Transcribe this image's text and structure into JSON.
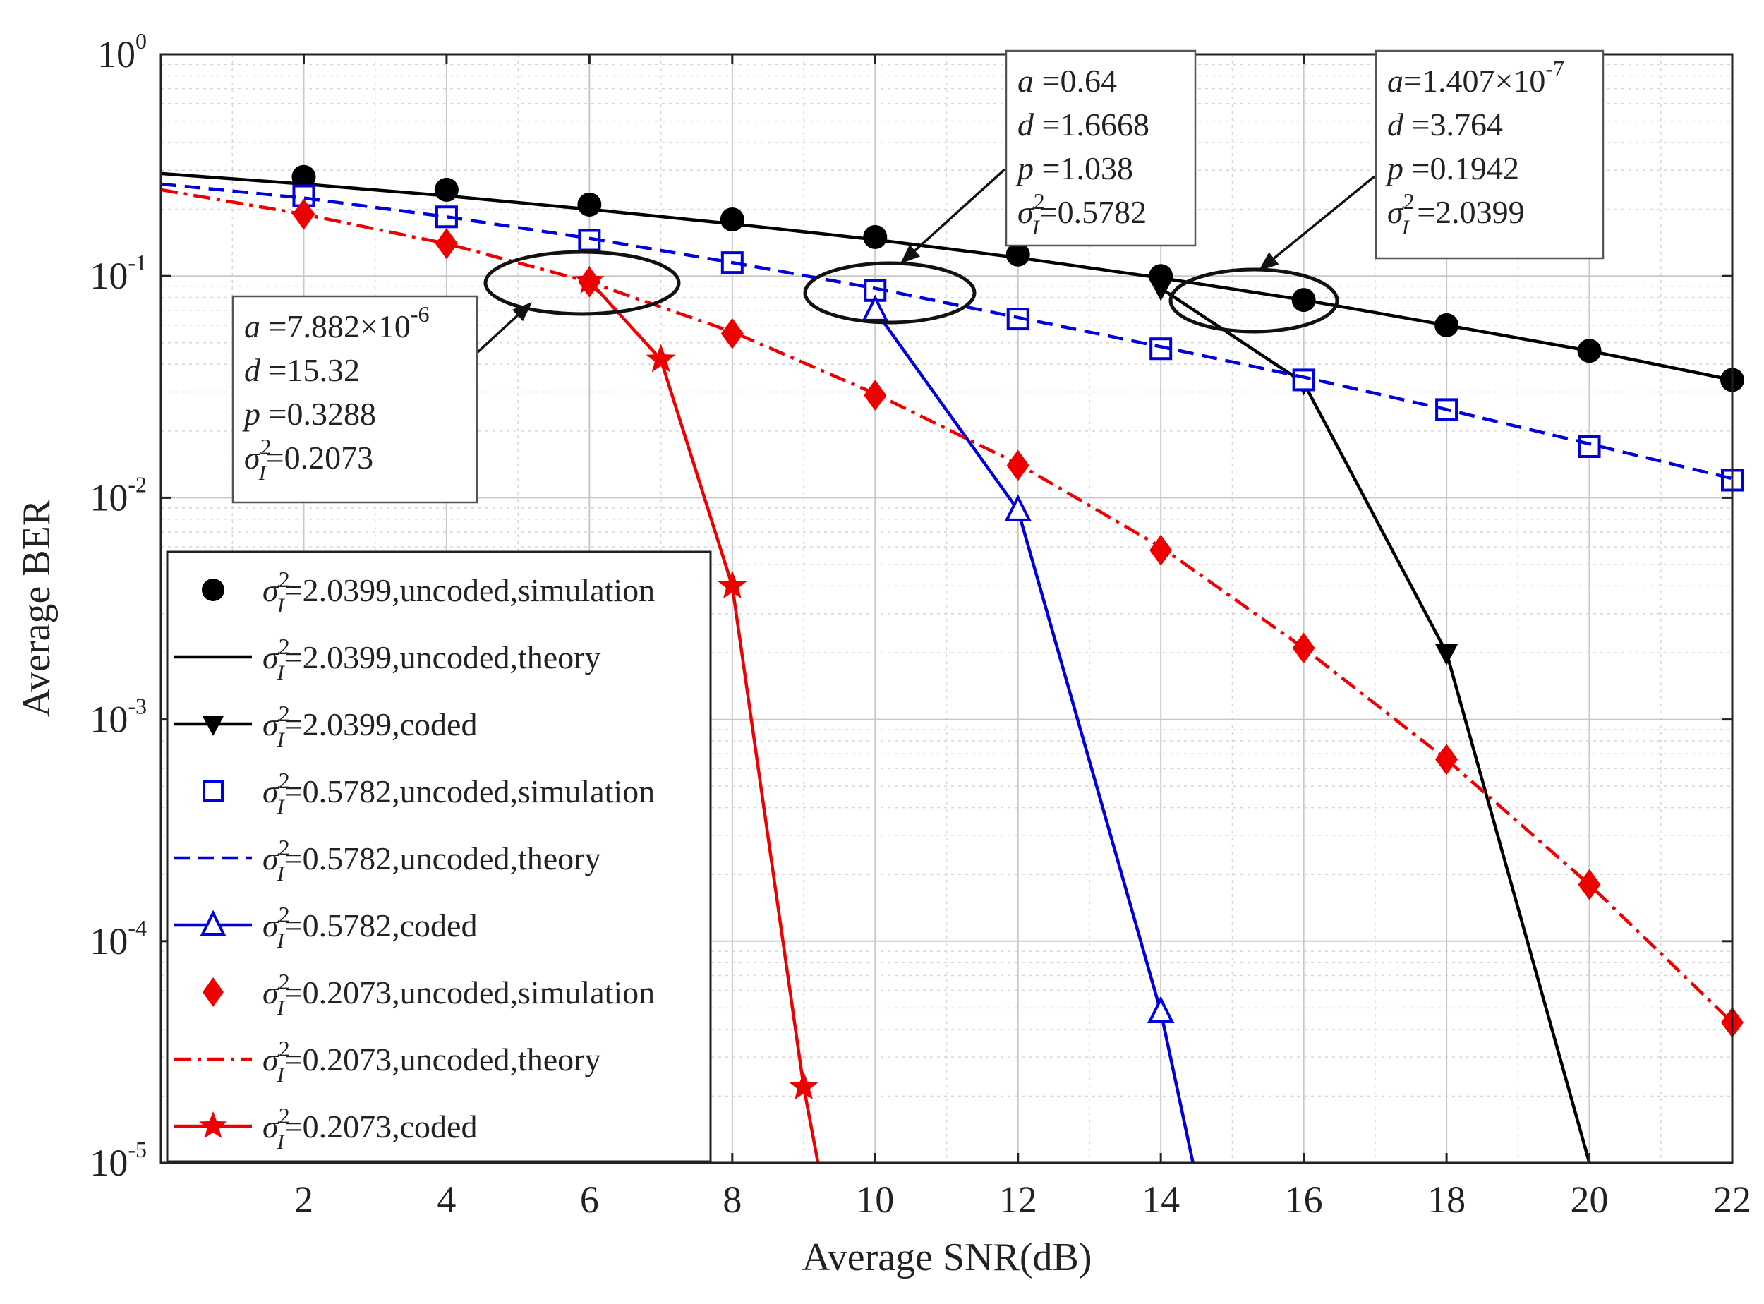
{
  "chart_data": {
    "type": "line",
    "x_scale": "linear",
    "y_scale": "log",
    "xlabel": "Average SNR(dB)",
    "ylabel": "Average BER",
    "xlim": [
      0,
      22
    ],
    "ylim": [
      1e-05,
      1
    ],
    "xticks": [
      2,
      4,
      6,
      8,
      10,
      12,
      14,
      16,
      18,
      20,
      22
    ],
    "yticks": [
      {
        "value": 1,
        "base": "10",
        "exp": "0"
      },
      {
        "value": 0.1,
        "base": "10",
        "exp": "-1"
      },
      {
        "value": 0.01,
        "base": "10",
        "exp": "-2"
      },
      {
        "value": 0.001,
        "base": "10",
        "exp": "-3"
      },
      {
        "value": 0.0001,
        "base": "10",
        "exp": "-4"
      },
      {
        "value": 1e-05,
        "base": "10",
        "exp": "-5"
      }
    ],
    "grid": true,
    "legend_position": "bottom-left",
    "series": [
      {
        "name": "σI2=2.0399,uncoded,simulation",
        "legend_value": "=2.0399,uncoded,simulation",
        "color": "#000000",
        "line": "none",
        "marker": "circle",
        "x": [
          2,
          4,
          6,
          8,
          10,
          12,
          14,
          16,
          18,
          20,
          22
        ],
        "y": [
          0.28,
          0.245,
          0.21,
          0.18,
          0.15,
          0.125,
          0.1,
          0.078,
          0.06,
          0.046,
          0.034
        ]
      },
      {
        "name": "σI2=2.0399,uncoded,theory",
        "legend_value": "=2.0399,uncoded,theory",
        "color": "#000000",
        "line": "solid",
        "marker": "none",
        "x": [
          0,
          2,
          4,
          6,
          8,
          10,
          12,
          14,
          16,
          18,
          20,
          22
        ],
        "y": [
          0.29,
          0.26,
          0.23,
          0.2,
          0.172,
          0.146,
          0.121,
          0.098,
          0.078,
          0.06,
          0.046,
          0.034
        ]
      },
      {
        "name": "σI2=2.0399,coded",
        "legend_value": "=2.0399,coded",
        "color": "#000000",
        "line": "solid",
        "marker": "triangle-down",
        "x": [
          14,
          16,
          18,
          20
        ],
        "y": [
          0.088,
          0.033,
          0.002,
          1e-05
        ]
      },
      {
        "name": "σI2=0.5782,uncoded,simulation",
        "legend_value": "=0.5782,uncoded,simulation",
        "color": "#0000dd",
        "line": "none",
        "marker": "square",
        "x": [
          2,
          4,
          6,
          8,
          10,
          12,
          14,
          16,
          18,
          20,
          22
        ],
        "y": [
          0.23,
          0.185,
          0.145,
          0.115,
          0.086,
          0.064,
          0.047,
          0.034,
          0.025,
          0.017,
          0.012
        ]
      },
      {
        "name": "σI2=0.5782,uncoded,theory",
        "legend_value": "=0.5782,uncoded,theory",
        "color": "#0000dd",
        "line": "dashed",
        "marker": "none",
        "x": [
          0,
          2,
          4,
          6,
          8,
          10,
          12,
          14,
          16,
          18,
          20,
          22
        ],
        "y": [
          0.26,
          0.225,
          0.185,
          0.148,
          0.115,
          0.088,
          0.065,
          0.048,
          0.035,
          0.025,
          0.0175,
          0.0122
        ]
      },
      {
        "name": "σI2=0.5782,coded",
        "legend_value": "=0.5782,coded",
        "color": "#0000dd",
        "line": "solid",
        "marker": "triangle-up",
        "x": [
          10,
          12,
          14,
          14.45
        ],
        "y": [
          0.07,
          0.0088,
          4.8e-05,
          1e-05
        ]
      },
      {
        "name": "σI2=0.2073,uncoded,simulation",
        "legend_value": "=0.2073,uncoded,simulation",
        "color": "#ee0000",
        "line": "none",
        "marker": "diamond",
        "x": [
          2,
          4,
          6,
          8,
          10,
          12,
          14,
          16,
          18,
          20,
          22
        ],
        "y": [
          0.19,
          0.14,
          0.094,
          0.055,
          0.029,
          0.014,
          0.0058,
          0.0021,
          0.00066,
          0.00018,
          4.3e-05
        ]
      },
      {
        "name": "σI2=0.2073,uncoded,theory",
        "legend_value": "=0.2073,uncoded,theory",
        "color": "#ee0000",
        "line": "dashdot",
        "marker": "none",
        "x": [
          0,
          2,
          4,
          6,
          8,
          10,
          12,
          14,
          16,
          18,
          20,
          22
        ],
        "y": [
          0.245,
          0.19,
          0.14,
          0.094,
          0.056,
          0.0295,
          0.0142,
          0.006,
          0.0021,
          0.00066,
          0.00018,
          4.3e-05
        ]
      },
      {
        "name": "σI2=0.2073,coded",
        "legend_value": "=0.2073,coded",
        "color": "#ee0000",
        "line": "solid",
        "marker": "star",
        "x": [
          6,
          7,
          8,
          9,
          9.2
        ],
        "y": [
          0.095,
          0.042,
          0.004,
          2.2e-05,
          1e-05
        ]
      }
    ],
    "annotations": [
      {
        "id": "annot-blue",
        "lines": [
          {
            "var": "a",
            "value": " =0.64"
          },
          {
            "var": "d",
            "value": " =1.6668"
          },
          {
            "var": "p",
            "value": " =1.038"
          },
          {
            "var": "σ",
            "value": "=0.5782",
            "sup": "2",
            "sub": "I"
          }
        ]
      },
      {
        "id": "annot-black",
        "lines": [
          {
            "var": "a",
            "value": "=1.407×10",
            "sup": "-7"
          },
          {
            "var": "d",
            "value": " =3.764"
          },
          {
            "var": "p",
            "value": " =0.1942"
          },
          {
            "var": "σ",
            "value": " =2.0399",
            "sup": "2",
            "sub": "I"
          }
        ]
      },
      {
        "id": "annot-red",
        "lines": [
          {
            "var": "a",
            "value": " =7.882×10",
            "sup": "-6"
          },
          {
            "var": "d",
            "value": " =15.32"
          },
          {
            "var": "p",
            "value": " =0.3288"
          },
          {
            "var": "σ",
            "value": "=0.2073",
            "sup": "2",
            "sub": "I"
          }
        ]
      }
    ]
  }
}
